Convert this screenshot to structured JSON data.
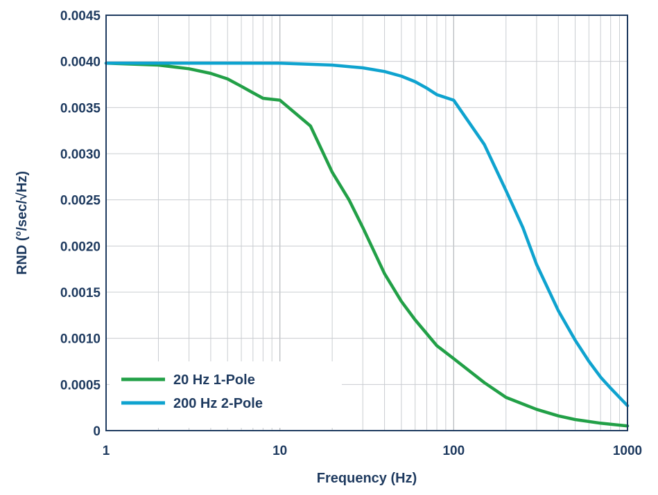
{
  "chart_data": {
    "type": "line",
    "xlabel": "Frequency (Hz)",
    "ylabel": "RND (°/sec/√Hz)",
    "x_scale": "log",
    "xlim": [
      1,
      1000
    ],
    "ylim": [
      0,
      0.0045
    ],
    "x_ticks": [
      "1",
      "10",
      "100",
      "1000"
    ],
    "y_ticks": [
      "0",
      "0.0005",
      "0.0010",
      "0.0015",
      "0.0020",
      "0.0025",
      "0.0030",
      "0.0035",
      "0.0040",
      "0.0045"
    ],
    "grid": true,
    "legend_position": "bottom-left",
    "series": [
      {
        "name": "20 Hz 1-Pole",
        "color": "#22a047",
        "points": [
          [
            1,
            0.00398
          ],
          [
            2,
            0.00396
          ],
          [
            3,
            0.00392
          ],
          [
            4,
            0.00387
          ],
          [
            5,
            0.00381
          ],
          [
            6,
            0.00373
          ],
          [
            7,
            0.00366
          ],
          [
            8,
            0.0036
          ],
          [
            10,
            0.00358
          ],
          [
            15,
            0.0033
          ],
          [
            20,
            0.0028
          ],
          [
            25,
            0.0025
          ],
          [
            30,
            0.0022
          ],
          [
            40,
            0.0017
          ],
          [
            50,
            0.0014
          ],
          [
            60,
            0.0012
          ],
          [
            70,
            0.00105
          ],
          [
            80,
            0.00092
          ],
          [
            100,
            0.00078
          ],
          [
            150,
            0.00052
          ],
          [
            200,
            0.00036
          ],
          [
            300,
            0.00023
          ],
          [
            400,
            0.00016
          ],
          [
            500,
            0.00012
          ],
          [
            700,
            8e-05
          ],
          [
            1000,
            5e-05
          ]
        ]
      },
      {
        "name": "200 Hz 2-Pole",
        "color": "#0fa3cf",
        "points": [
          [
            1,
            0.00398
          ],
          [
            5,
            0.00398
          ],
          [
            10,
            0.00398
          ],
          [
            20,
            0.00396
          ],
          [
            30,
            0.00393
          ],
          [
            40,
            0.00389
          ],
          [
            50,
            0.00384
          ],
          [
            60,
            0.00378
          ],
          [
            70,
            0.00371
          ],
          [
            80,
            0.00364
          ],
          [
            100,
            0.00358
          ],
          [
            150,
            0.0031
          ],
          [
            200,
            0.0026
          ],
          [
            250,
            0.0022
          ],
          [
            300,
            0.0018
          ],
          [
            400,
            0.0013
          ],
          [
            500,
            0.00098
          ],
          [
            600,
            0.00075
          ],
          [
            700,
            0.00058
          ],
          [
            800,
            0.00046
          ],
          [
            1000,
            0.00027
          ]
        ]
      }
    ]
  }
}
